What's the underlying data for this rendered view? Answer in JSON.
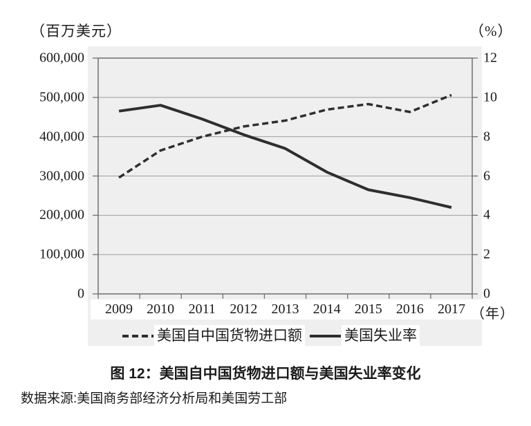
{
  "title": "图 12：美国自中国货物进口额与美国失业率变化",
  "source": "数据来源:美国商务部经济分析局和美国劳工部",
  "axis_left_unit": "（百万美元）",
  "axis_right_unit": "（%）",
  "axis_x_unit": "（年）",
  "legend": {
    "items": [
      {
        "label": "美国自中国货物进口额",
        "style": "dashed"
      },
      {
        "label": "美国失业率",
        "style": "solid"
      }
    ]
  },
  "colors": {
    "line": "#2e2e2e",
    "grid": "#9e9e9e",
    "frame": "#6f6f6f",
    "panel": "#efefef",
    "text": "#1a1a1a"
  },
  "chart_data": {
    "type": "line",
    "x": [
      "2009",
      "2010",
      "2011",
      "2012",
      "2013",
      "2014",
      "2015",
      "2016",
      "2017"
    ],
    "series": [
      {
        "name": "美国自中国货物进口额",
        "axis": "left",
        "style": "dashed",
        "values": [
          296000,
          365000,
          400000,
          426000,
          441000,
          469000,
          483000,
          463000,
          506000
        ]
      },
      {
        "name": "美国失业率",
        "axis": "right",
        "style": "solid",
        "values": [
          9.3,
          9.6,
          8.9,
          8.1,
          7.4,
          6.2,
          5.3,
          4.9,
          4.4
        ]
      }
    ],
    "left_axis": {
      "unit": "（百万美元）",
      "min": 0,
      "max": 600000,
      "tick_step": 100000,
      "tick_labels": [
        "600,000",
        "500,000",
        "400,000",
        "300,000",
        "200,000",
        "100,000",
        "0"
      ]
    },
    "right_axis": {
      "unit": "（%）",
      "min": 0,
      "max": 12,
      "tick_step": 2,
      "tick_labels": [
        "12",
        "10",
        "8",
        "6",
        "4",
        "2",
        "0"
      ]
    },
    "x_axis": {
      "unit": "（年）"
    },
    "grid": "horizontal",
    "legend_position": "bottom"
  }
}
